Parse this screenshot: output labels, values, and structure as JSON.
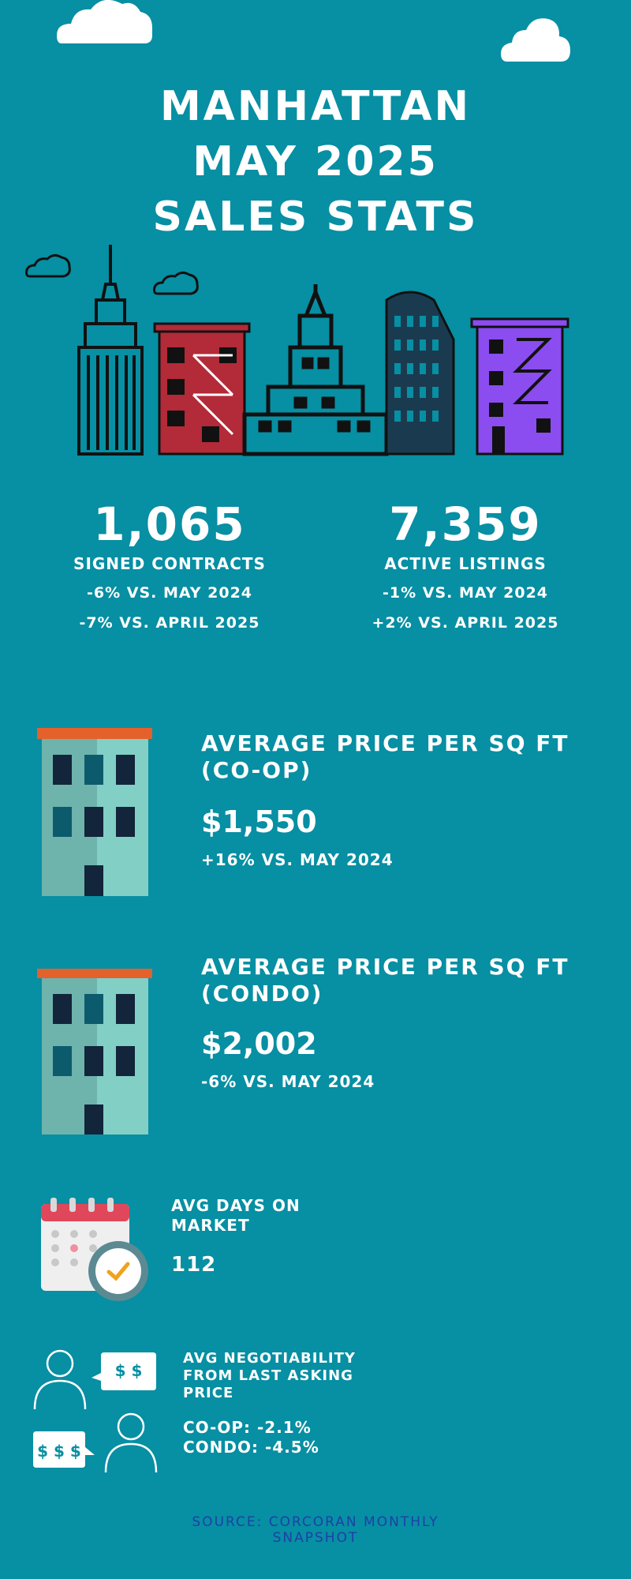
{
  "title": {
    "line1": "MANHATTAN",
    "line2": "MAY 2025",
    "line3": "SALES STATS"
  },
  "stats": [
    {
      "number": "1,065",
      "label": "SIGNED CONTRACTS",
      "change1": "-6% VS. MAY 2024",
      "change2": "-7% VS. APRIL 2025"
    },
    {
      "number": "7,359",
      "label": "ACTIVE LISTINGS",
      "change1": "-1% VS. MAY 2024",
      "change2": "+2% VS. APRIL 2025"
    }
  ],
  "coop": {
    "heading1": "AVERAGE PRICE PER SQ FT",
    "heading2": "(CO-OP)",
    "value": "$1,550",
    "change": "+16% VS. MAY 2024"
  },
  "condo": {
    "heading1": "AVERAGE PRICE PER SQ FT",
    "heading2": "(CONDO)",
    "value": "$2,002",
    "change": "-6% VS. MAY 2024"
  },
  "days": {
    "heading1": "AVG DAYS ON",
    "heading2": "MARKET",
    "value": "112"
  },
  "negotiability": {
    "heading1": "AVG NEGOTIABILITY",
    "heading2": "FROM LAST ASKING",
    "heading3": "PRICE",
    "coop": "CO-OP: -2.1%",
    "condo": "CONDO: -4.5%",
    "bubble_top": "$ $",
    "bubble_bottom": "$ $ $"
  },
  "source": {
    "line1": "SOURCE: CORCORAN MONTHLY",
    "line2": "SNAPSHOT"
  },
  "colors": {
    "background": "#078fa3",
    "red_building": "#b32a38",
    "purple_building": "#8b4cf0",
    "roof_orange": "#e4612b"
  }
}
